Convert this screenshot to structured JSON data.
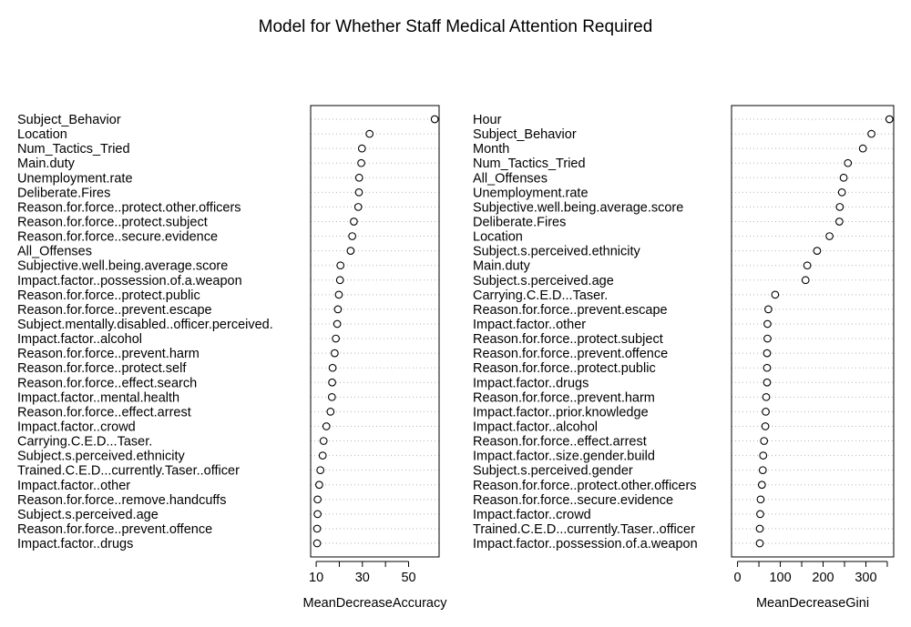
{
  "title": "Model for Whether Staff Medical Attention Required",
  "chart_data": [
    {
      "type": "scatter",
      "xlabel": "MeanDecreaseAccuracy",
      "ylabel": "",
      "xticks": [
        10,
        30,
        50
      ],
      "xticks_minor": [
        20,
        40
      ],
      "xlim": [
        7.6,
        63.2
      ],
      "grid": "dotted horizontal",
      "categories": [
        "Subject_Behavior",
        "Location",
        "Num_Tactics_Tried",
        "Main.duty",
        "Unemployment.rate",
        "Deliberate.Fires",
        "Reason.for.force..protect.other.officers",
        "Reason.for.force..protect.subject",
        "Reason.for.force..secure.evidence",
        "All_Offenses",
        "Subjective.well.being.average.score",
        "Impact.factor..possession.of.a.weapon",
        "Reason.for.force..protect.public",
        "Reason.for.force..prevent.escape",
        "Subject.mentally.disabled..officer.perceived.",
        "Impact.factor..alcohol",
        "Reason.for.force..prevent.harm",
        "Reason.for.force..protect.self",
        "Reason.for.force..effect.search",
        "Impact.factor..mental.health",
        "Reason.for.force..effect.arrest",
        "Impact.factor..crowd",
        "Carrying.C.E.D...Taser.",
        "Subject.s.perceived.ethnicity",
        "Trained.C.E.D...currently.Taser..officer",
        "Impact.factor..other",
        "Reason.for.force..remove.handcuffs",
        "Subject.s.perceived.age",
        "Reason.for.force..prevent.offence",
        "Impact.factor..drugs"
      ],
      "values": [
        61.3,
        33.1,
        29.8,
        29.5,
        28.6,
        28.5,
        28.2,
        26.3,
        25.6,
        24.9,
        20.5,
        20.3,
        19.8,
        19.4,
        19.1,
        18.5,
        18.0,
        17.1,
        16.9,
        16.8,
        16.2,
        14.4,
        13.2,
        12.8,
        11.8,
        11.3,
        10.6,
        10.6,
        10.4,
        10.4
      ]
    },
    {
      "type": "scatter",
      "xlabel": "MeanDecreaseGini",
      "ylabel": "",
      "xticks": [
        0,
        100,
        200,
        300
      ],
      "xticks_minor": [
        50,
        150,
        250,
        350
      ],
      "xlim": [
        -14,
        365
      ],
      "grid": "dotted horizontal",
      "categories": [
        "Hour",
        "Subject_Behavior",
        "Month",
        "Num_Tactics_Tried",
        "All_Offenses",
        "Unemployment.rate",
        "Subjective.well.being.average.score",
        "Deliberate.Fires",
        "Location",
        "Subject.s.perceived.ethnicity",
        "Main.duty",
        "Subject.s.perceived.age",
        "Carrying.C.E.D...Taser.",
        "Reason.for.force..prevent.escape",
        "Impact.factor..other",
        "Reason.for.force..protect.subject",
        "Reason.for.force..prevent.offence",
        "Reason.for.force..protect.public",
        "Impact.factor..drugs",
        "Reason.for.force..prevent.harm",
        "Impact.factor..prior.knowledge",
        "Impact.factor..alcohol",
        "Reason.for.force..effect.arrest",
        "Impact.factor..size.gender.build",
        "Subject.s.perceived.gender",
        "Reason.for.force..protect.other.officers",
        "Reason.for.force..secure.evidence",
        "Impact.factor..crowd",
        "Trained.C.E.D...currently.Taser..officer",
        "Impact.factor..possession.of.a.weapon"
      ],
      "values": [
        355,
        313,
        293,
        258,
        248,
        244,
        239,
        238,
        215,
        186,
        163,
        159,
        88,
        72,
        70,
        70,
        69,
        69,
        69,
        67,
        66,
        65,
        62,
        60,
        59,
        57,
        54,
        53,
        52,
        52
      ]
    }
  ]
}
